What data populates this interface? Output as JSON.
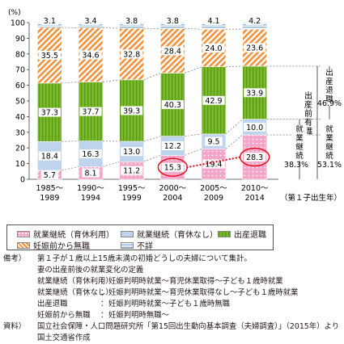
{
  "chart_data": {
    "type": "bar",
    "stacked": true,
    "percent_stacked": true,
    "y_unit_label": "(%)",
    "ylim": [
      0,
      100
    ],
    "yticks": [
      "0",
      "10",
      "20",
      "30",
      "40",
      "50",
      "60",
      "70",
      "80",
      "90",
      "100"
    ],
    "x_axis_label": "（第１子出生年）",
    "categories": [
      {
        "top": "1985〜",
        "bottom": "1989"
      },
      {
        "top": "1990〜",
        "bottom": "1994"
      },
      {
        "top": "1995〜",
        "bottom": "1999"
      },
      {
        "top": "2000〜",
        "bottom": "2004"
      },
      {
        "top": "2005〜",
        "bottom": "2009"
      },
      {
        "top": "2010〜",
        "bottom": "2014"
      }
    ],
    "series": [
      {
        "name": "就業継続（育休利用）",
        "color": "#f4a6c8",
        "pattern": "dots",
        "values": [
          5.7,
          8.1,
          11.2,
          15.3,
          19.4,
          28.3
        ]
      },
      {
        "name": "就業継続（育休なし）",
        "color": "#bed3ec",
        "pattern": "solid",
        "values": [
          18.4,
          16.3,
          13.0,
          12.2,
          9.5,
          10.0
        ]
      },
      {
        "name": "出産退職",
        "color": "#78b82a",
        "pattern": "vstripes",
        "values": [
          37.3,
          37.7,
          39.3,
          40.3,
          42.9,
          33.9
        ]
      },
      {
        "name": "妊娠前から無職",
        "color": "#f0923c",
        "pattern": "diagonal",
        "values": [
          35.5,
          34.6,
          32.8,
          28.4,
          24.0,
          23.6
        ]
      },
      {
        "name": "不詳",
        "color": "#8fb6dc",
        "pattern": "hstripes",
        "values": [
          3.1,
          3.4,
          3.8,
          3.8,
          4.1,
          4.2
        ]
      }
    ],
    "value_labels": [
      [
        "5.7",
        "8.1",
        "11.2",
        "15.3",
        "19.4",
        "28.3"
      ],
      [
        "18.4",
        "16.3",
        "13.0",
        "12.2",
        "9.5",
        "10.0"
      ],
      [
        "37.3",
        "37.7",
        "39.3",
        "40.3",
        "42.9",
        "33.9"
      ],
      [
        "35.5",
        "34.6",
        "32.8",
        "28.4",
        "24.0",
        "23.6"
      ],
      [
        "3.1",
        "3.4",
        "3.8",
        "3.8",
        "4.1",
        "4.2"
      ]
    ],
    "circled": [
      {
        "series": 0,
        "category": 3
      },
      {
        "series": 0,
        "category": 5
      }
    ],
    "annotations": {
      "taishoku": "出産退職",
      "taishoku_value": "46.9%",
      "zengo_shugyo": "出産前有職",
      "keizoku": "就業継続",
      "keizoku_inner_value": "38.3%",
      "keizoku_outer_value": "53.1%"
    },
    "legend_position": "bottom"
  },
  "legend": [
    {
      "label": "就業継続（育休利用）",
      "color": "#f4a6c8"
    },
    {
      "label": "就業継続（育休なし）",
      "color": "#bed3ec"
    },
    {
      "label": "出産退職",
      "color": "#78b82a"
    },
    {
      "label": "妊娠前から無職",
      "color": "#f0923c"
    },
    {
      "label": "不詳",
      "color": "#8fb6dc"
    }
  ],
  "notes": {
    "bikou_label": "備考）",
    "bikou_1": "第１子が１歳以上15歳未満の初婚どうしの夫婦について集計。",
    "bikou_2": "妻の出産前後の就業変化の定義",
    "defs": [
      {
        "term": "就業継続（育休利用）",
        "desc": "妊娠判明時就業〜育児休業取得〜子ども１歳時就業"
      },
      {
        "term": "就業継続（育休なし）",
        "desc": "妊娠判明時就業〜育児休業取得なし〜子ども１歳時就業"
      },
      {
        "term": "出産退職",
        "desc": "妊娠判明時就業〜子ども１歳時無職"
      },
      {
        "term": "妊娠前から無職",
        "desc": "妊娠判明時無職〜"
      }
    ],
    "shiryo_label": "資料）",
    "shiryo_1": "国立社会保障・人口問題研究所「第15回出生動向基本調査（夫婦調査）」（2015年）より",
    "shiryo_2": "国土交通省作成"
  }
}
